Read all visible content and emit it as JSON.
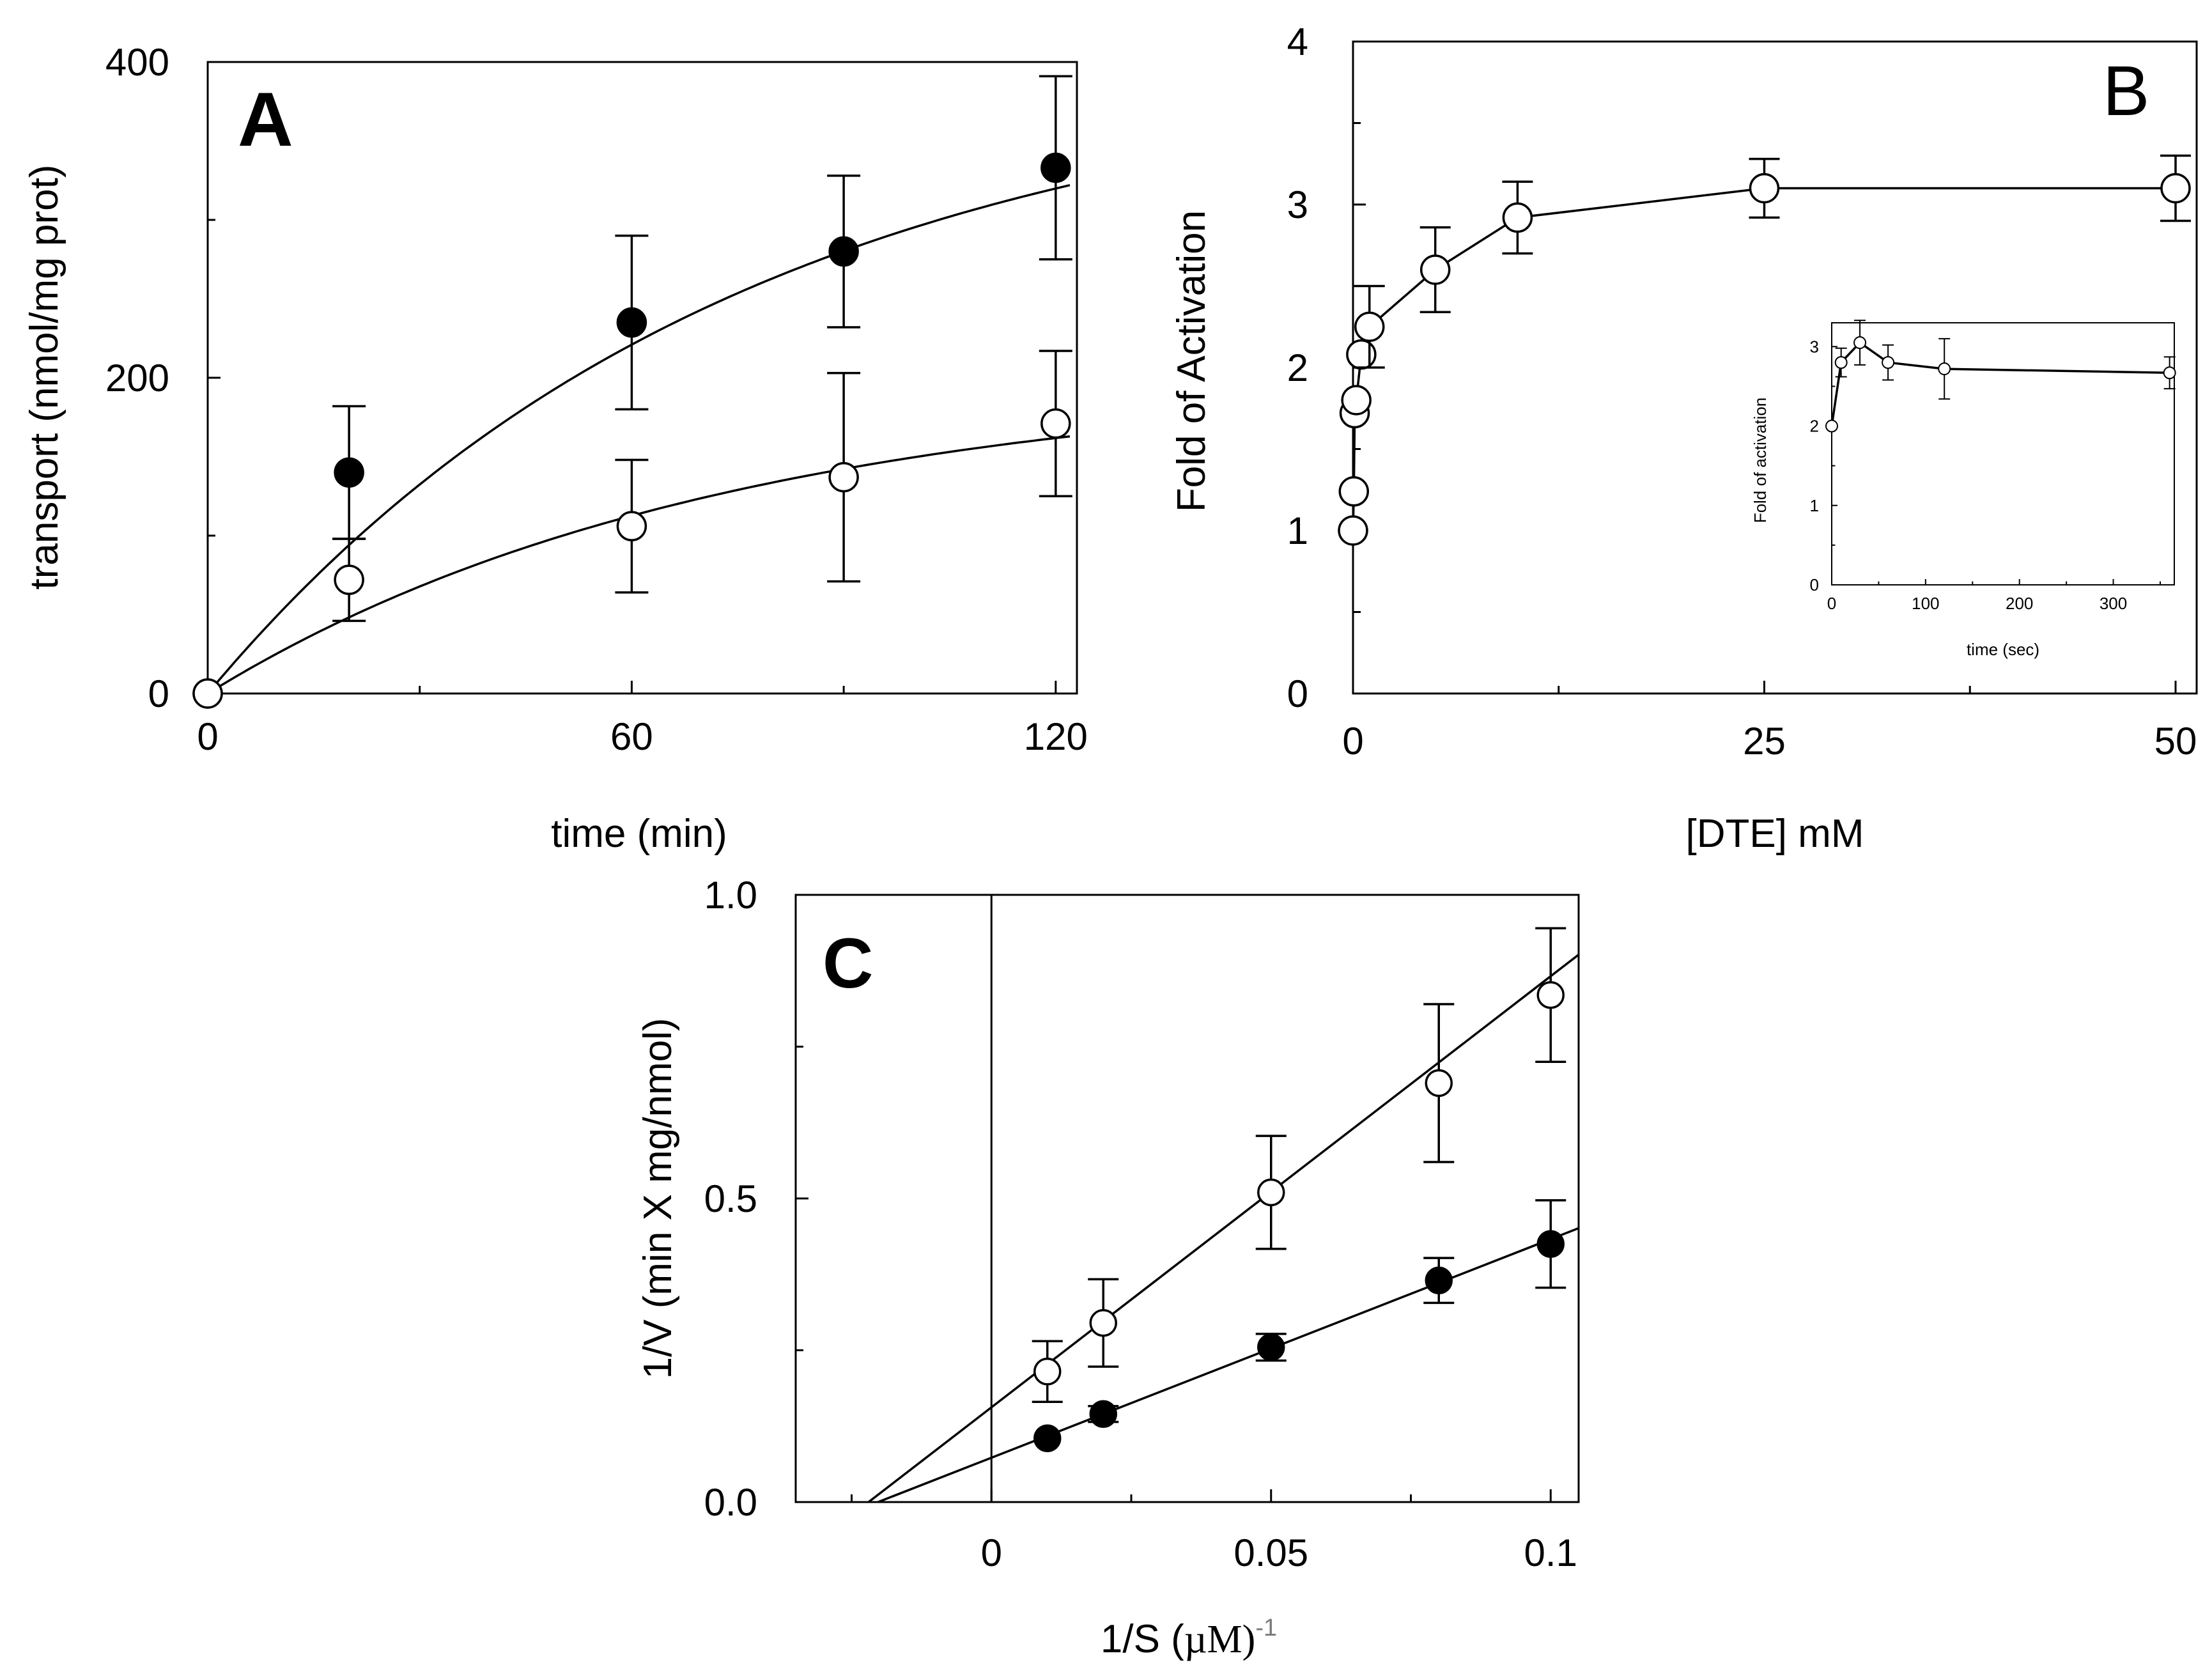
{
  "chart_data": [
    {
      "panel": "A",
      "type": "scatter",
      "xlabel": "time (min)",
      "ylabel": "transport (nmol/mg prot)",
      "xlim": [
        0,
        123
      ],
      "ylim": [
        0,
        400
      ],
      "xticks": [
        0,
        60,
        120
      ],
      "xtick_labels": [
        "0",
        "60",
        "120"
      ],
      "yticks": [
        0,
        200,
        400
      ],
      "ytick_labels": [
        "0",
        "200",
        "400"
      ],
      "series": [
        {
          "name": "filled",
          "marker": "filled-circle",
          "x": [
            0,
            20,
            60,
            90,
            120
          ],
          "y": [
            0,
            140,
            235,
            280,
            333
          ],
          "err": [
            0,
            42,
            55,
            48,
            58
          ],
          "fit": {
            "model": "exponential-rise",
            "vmax": 400,
            "k": 0.0134
          }
        },
        {
          "name": "open",
          "marker": "open-circle",
          "x": [
            0,
            20,
            60,
            90,
            120
          ],
          "y": [
            0,
            72,
            106,
            137,
            171
          ],
          "err": [
            0,
            26,
            42,
            66,
            46
          ],
          "fit": {
            "model": "exponential-rise",
            "vmax": 200,
            "k": 0.0138
          }
        }
      ]
    },
    {
      "panel": "B",
      "type": "line",
      "xlabel": "[DTE] mM",
      "ylabel": "Fold of Activation",
      "xlim": [
        0,
        50
      ],
      "ylim": [
        0,
        4
      ],
      "xticks": [
        0,
        25,
        50
      ],
      "xtick_labels": [
        "0",
        "25",
        "50"
      ],
      "yticks": [
        0,
        1,
        2,
        3,
        4
      ],
      "ytick_labels": [
        "0",
        "1",
        "2",
        "3",
        "4"
      ],
      "series": [
        {
          "name": "DTE",
          "marker": "open-circle",
          "x": [
            0,
            0.05,
            0.1,
            0.2,
            0.5,
            1,
            5,
            10,
            25,
            50
          ],
          "y": [
            1.0,
            1.24,
            1.72,
            1.8,
            2.08,
            2.25,
            2.6,
            2.92,
            3.1,
            3.1
          ],
          "err": [
            0,
            0,
            0,
            0,
            0,
            0.25,
            0.26,
            0.22,
            0.18,
            0.2
          ]
        }
      ],
      "inset": {
        "xlabel": "time (sec)",
        "ylabel": "Fold of activation",
        "xlim": [
          0,
          365
        ],
        "ylim": [
          0,
          3.3
        ],
        "xticks": [
          0,
          100,
          200,
          300
        ],
        "xtick_labels": [
          "0",
          "100",
          "200",
          "300"
        ],
        "yticks": [
          0,
          1,
          2,
          3
        ],
        "ytick_labels": [
          "0",
          "1",
          "2",
          "3"
        ],
        "series": [
          {
            "name": "time",
            "marker": "open-circle",
            "x": [
              0,
              10,
              30,
              60,
              120,
              360
            ],
            "y": [
              2.0,
              2.8,
              3.05,
              2.8,
              2.72,
              2.67
            ],
            "err": [
              0,
              0.18,
              0.28,
              0.22,
              0.38,
              0.2
            ]
          }
        ]
      }
    },
    {
      "panel": "C",
      "type": "scatter",
      "xlabel": "1/S (",
      "xlabel_unit": "µM)",
      "xlabel_sup": "-1",
      "ylabel": "1/V (min X mg/nmol)",
      "xlim": [
        -0.035,
        0.105
      ],
      "ylim": [
        0.0,
        1.0
      ],
      "xticks": [
        0,
        0.05,
        0.1
      ],
      "xtick_labels": [
        "0",
        "0.05",
        "0.1"
      ],
      "yticks": [
        0.0,
        0.5,
        1.0
      ],
      "ytick_labels": [
        "0.0",
        "0.5",
        "1.0"
      ],
      "series": [
        {
          "name": "open",
          "marker": "open-circle",
          "x": [
            0.01,
            0.02,
            0.05,
            0.08,
            0.1
          ],
          "y": [
            0.215,
            0.295,
            0.51,
            0.69,
            0.835
          ],
          "err": [
            0.05,
            0.072,
            0.093,
            0.13,
            0.11
          ],
          "fit": {
            "slope": 7.1,
            "intercept": 0.156
          }
        },
        {
          "name": "filled",
          "marker": "filled-circle",
          "x": [
            0.01,
            0.02,
            0.05,
            0.08,
            0.1
          ],
          "y": [
            0.105,
            0.145,
            0.255,
            0.365,
            0.425
          ],
          "err": [
            0,
            0.013,
            0.022,
            0.037,
            0.072
          ],
          "fit": {
            "slope": 3.6,
            "intercept": 0.073
          }
        }
      ]
    }
  ],
  "panels": {
    "a": {
      "letter": "A"
    },
    "b": {
      "letter": "B"
    },
    "c": {
      "letter": "C"
    }
  }
}
